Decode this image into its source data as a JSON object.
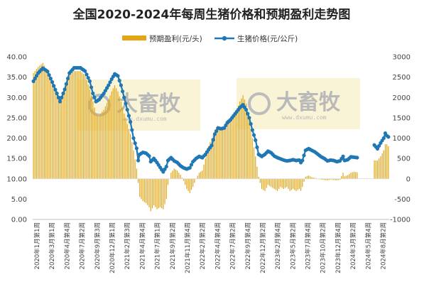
{
  "chart_data": {
    "type": "bar+line",
    "title": "全国2020-2024年每周生猪价格和预期盈利走势图",
    "legend": {
      "position": "top",
      "items": [
        {
          "label": "预期盈利(元/头)",
          "kind": "bar",
          "color": "#e2a515"
        },
        {
          "label": "生猪价格(元/公斤)",
          "kind": "line-marker",
          "color": "#1f77b4"
        }
      ]
    },
    "y_left": {
      "min": 0,
      "max": 40,
      "ticks": [
        "0.00",
        "5.00",
        "10.00",
        "15.00",
        "20.00",
        "25.00",
        "30.00",
        "35.00",
        "40.00"
      ],
      "series": "生猪价格(元/公斤)"
    },
    "y_right": {
      "min": -1000,
      "max": 3000,
      "ticks": [
        "-1000",
        "-500",
        "0",
        "500",
        "1000",
        "1500",
        "2000",
        "2500",
        "3000"
      ],
      "series": "预期盈利(元/头)"
    },
    "x_tick_labels": [
      "2020年1月第1周",
      "2020年3月第1周",
      "2020年4月第4周",
      "2020年7月第2周",
      "2020年9月第3周",
      "2020年12月第1周",
      "2021年2月第3周",
      "2021年4月第4周",
      "2021年7月第1周",
      "2021年9月第2周",
      "2021年11月第4周",
      "2022年2月第2周",
      "2022年4月第4周",
      "2022年7月第2周",
      "2022年9月第4周",
      "2022年12月第2周",
      "2023年2月第4周",
      "2023年5月第2周",
      "2023年7月第4周",
      "2023年10月第2周",
      "2023年12月第4周",
      "2024年3月第2周",
      "2024年5月第4周",
      "2024年8月第2周"
    ],
    "x_tick_labels_rendered": [
      "2020年1月第1周",
      "2020年3月第1周",
      "2020年4月第4周",
      "2020年7月第2周",
      "2020年9月第3周",
      "2020年12月第1周",
      "2021年2月第3周",
      "2021年4月第4周",
      "2021年7月第1周",
      "2021年9月第2周",
      "2021年11月第4周",
      "2022年2月第2周",
      "2022年4月第4周",
      "2022年7月第2周",
      "2022年9月第4周",
      "2022年12月第2周",
      "2023年2月第4周",
      "2023年5月第2周",
      "2023年7月第4周",
      "2023年10月第2周",
      "2023年12月第4周",
      "2024年3月第2周",
      "2024年5月第4周",
      "2024年8月第2周"
    ],
    "price_keypoints": [
      [
        0,
        34.0
      ],
      [
        3,
        36.0
      ],
      [
        6,
        37.2
      ],
      [
        9,
        36.4
      ],
      [
        12,
        33.8
      ],
      [
        15,
        31.0
      ],
      [
        17,
        29.0
      ],
      [
        20,
        32.0
      ],
      [
        23,
        36.0
      ],
      [
        26,
        37.3
      ],
      [
        30,
        37.3
      ],
      [
        33,
        36.5
      ],
      [
        36,
        34.0
      ],
      [
        38,
        31.0
      ],
      [
        40,
        29.0
      ],
      [
        42,
        29.5
      ],
      [
        45,
        31.0
      ],
      [
        48,
        33.0
      ],
      [
        50,
        34.5
      ],
      [
        52,
        35.8
      ],
      [
        54,
        35.3
      ],
      [
        56,
        33.0
      ],
      [
        58,
        30.0
      ],
      [
        60,
        27.0
      ],
      [
        62,
        24.0
      ],
      [
        64,
        20.0
      ],
      [
        66,
        17.5
      ],
      [
        67,
        14.5
      ],
      [
        68,
        16.0
      ],
      [
        70,
        16.5
      ],
      [
        72,
        16.3
      ],
      [
        74,
        15.6
      ],
      [
        75,
        14.2
      ],
      [
        77,
        15.0
      ],
      [
        79,
        14.0
      ],
      [
        81,
        12.8
      ],
      [
        83,
        11.7
      ],
      [
        85,
        13.0
      ],
      [
        86,
        14.5
      ],
      [
        88,
        15.2
      ],
      [
        90,
        14.4
      ],
      [
        92,
        14.0
      ],
      [
        94,
        13.2
      ],
      [
        96,
        12.7
      ],
      [
        98,
        12.4
      ],
      [
        100,
        12.7
      ],
      [
        102,
        14.2
      ],
      [
        104,
        15.0
      ],
      [
        106,
        15.5
      ],
      [
        108,
        15.2
      ],
      [
        110,
        16.0
      ],
      [
        112,
        17.2
      ],
      [
        114,
        18.2
      ],
      [
        116,
        21.0
      ],
      [
        118,
        22.5
      ],
      [
        120,
        22.3
      ],
      [
        122,
        22.5
      ],
      [
        124,
        23.8
      ],
      [
        126,
        24.5
      ],
      [
        128,
        25.5
      ],
      [
        130,
        26.5
      ],
      [
        132,
        27.5
      ],
      [
        134,
        28.2
      ],
      [
        136,
        27.0
      ],
      [
        138,
        25.0
      ],
      [
        140,
        22.0
      ],
      [
        142,
        19.5
      ],
      [
        144,
        16.0
      ],
      [
        146,
        15.5
      ],
      [
        148,
        16.0
      ],
      [
        150,
        16.8
      ],
      [
        152,
        16.4
      ],
      [
        154,
        15.6
      ],
      [
        156,
        15.2
      ],
      [
        158,
        14.9
      ],
      [
        160,
        14.6
      ],
      [
        162,
        14.4
      ],
      [
        164,
        14.5
      ],
      [
        166,
        14.7
      ],
      [
        168,
        14.5
      ],
      [
        170,
        14.6
      ],
      [
        171,
        14.0
      ],
      [
        172,
        14.5
      ],
      [
        174,
        17.0
      ],
      [
        176,
        17.4
      ],
      [
        178,
        17.0
      ],
      [
        180,
        16.6
      ],
      [
        182,
        16.0
      ],
      [
        184,
        15.4
      ],
      [
        186,
        15.0
      ],
      [
        188,
        14.4
      ],
      [
        190,
        14.6
      ],
      [
        192,
        14.5
      ],
      [
        194,
        14.2
      ],
      [
        196,
        14.4
      ],
      [
        198,
        15.5
      ],
      [
        199,
        14.5
      ],
      [
        201,
        14.7
      ],
      [
        203,
        15.4
      ],
      [
        205,
        15.3
      ],
      [
        207,
        15.2
      ],
      [
        208,
        null
      ],
      [
        217,
        null
      ],
      [
        218,
        18.3
      ],
      [
        220,
        17.4
      ],
      [
        222,
        18.8
      ],
      [
        224,
        20.0
      ],
      [
        225,
        21.2
      ],
      [
        226,
        20.6
      ],
      [
        227,
        20.3
      ]
    ],
    "profit_keypoints": [
      [
        0,
        2600
      ],
      [
        3,
        2750
      ],
      [
        6,
        2850
      ],
      [
        9,
        2650
      ],
      [
        12,
        2400
      ],
      [
        15,
        2150
      ],
      [
        17,
        1950
      ],
      [
        20,
        2200
      ],
      [
        23,
        2550
      ],
      [
        26,
        2650
      ],
      [
        30,
        2650
      ],
      [
        33,
        2550
      ],
      [
        36,
        2200
      ],
      [
        38,
        1900
      ],
      [
        40,
        1600
      ],
      [
        42,
        1550
      ],
      [
        45,
        1700
      ],
      [
        48,
        1950
      ],
      [
        50,
        2150
      ],
      [
        52,
        2300
      ],
      [
        54,
        2150
      ],
      [
        56,
        1900
      ],
      [
        58,
        1600
      ],
      [
        60,
        1350
      ],
      [
        62,
        1100
      ],
      [
        64,
        700
      ],
      [
        66,
        250
      ],
      [
        67,
        -100
      ],
      [
        68,
        -450
      ],
      [
        70,
        -550
      ],
      [
        72,
        -600
      ],
      [
        74,
        -700
      ],
      [
        75,
        -800
      ],
      [
        77,
        -650
      ],
      [
        79,
        -750
      ],
      [
        81,
        -700
      ],
      [
        83,
        -750
      ],
      [
        85,
        -500
      ],
      [
        86,
        -150
      ],
      [
        88,
        150
      ],
      [
        90,
        250
      ],
      [
        92,
        200
      ],
      [
        94,
        100
      ],
      [
        96,
        -50
      ],
      [
        98,
        -250
      ],
      [
        100,
        -350
      ],
      [
        102,
        -200
      ],
      [
        104,
        0
      ],
      [
        106,
        150
      ],
      [
        108,
        200
      ],
      [
        110,
        500
      ],
      [
        112,
        800
      ],
      [
        114,
        1000
      ],
      [
        116,
        1200
      ],
      [
        118,
        1300
      ],
      [
        120,
        1250
      ],
      [
        122,
        1300
      ],
      [
        124,
        1450
      ],
      [
        126,
        1500
      ],
      [
        128,
        1550
      ],
      [
        130,
        1700
      ],
      [
        132,
        1900
      ],
      [
        134,
        2050
      ],
      [
        136,
        1850
      ],
      [
        138,
        1450
      ],
      [
        140,
        1000
      ],
      [
        142,
        550
      ],
      [
        144,
        50
      ],
      [
        146,
        -250
      ],
      [
        148,
        -300
      ],
      [
        150,
        -150
      ],
      [
        152,
        -200
      ],
      [
        154,
        -250
      ],
      [
        156,
        -300
      ],
      [
        158,
        -200
      ],
      [
        160,
        -250
      ],
      [
        162,
        -200
      ],
      [
        164,
        -300
      ],
      [
        166,
        -250
      ],
      [
        168,
        -300
      ],
      [
        170,
        -250
      ],
      [
        171,
        -300
      ],
      [
        172,
        -200
      ],
      [
        174,
        50
      ],
      [
        176,
        80
      ],
      [
        178,
        40
      ],
      [
        180,
        20
      ],
      [
        182,
        0
      ],
      [
        184,
        -20
      ],
      [
        186,
        -30
      ],
      [
        188,
        -40
      ],
      [
        190,
        -20
      ],
      [
        192,
        -30
      ],
      [
        194,
        -40
      ],
      [
        196,
        -20
      ],
      [
        198,
        150
      ],
      [
        199,
        60
      ],
      [
        201,
        90
      ],
      [
        203,
        150
      ],
      [
        205,
        170
      ],
      [
        207,
        160
      ],
      [
        208,
        null
      ],
      [
        217,
        null
      ],
      [
        218,
        450
      ],
      [
        220,
        450
      ],
      [
        222,
        550
      ],
      [
        224,
        700
      ],
      [
        225,
        850
      ],
      [
        226,
        850
      ],
      [
        227,
        800
      ]
    ],
    "n_weeks": 228,
    "watermark": {
      "brand": "大畜牧",
      "site": "www.dxumu.com"
    }
  }
}
